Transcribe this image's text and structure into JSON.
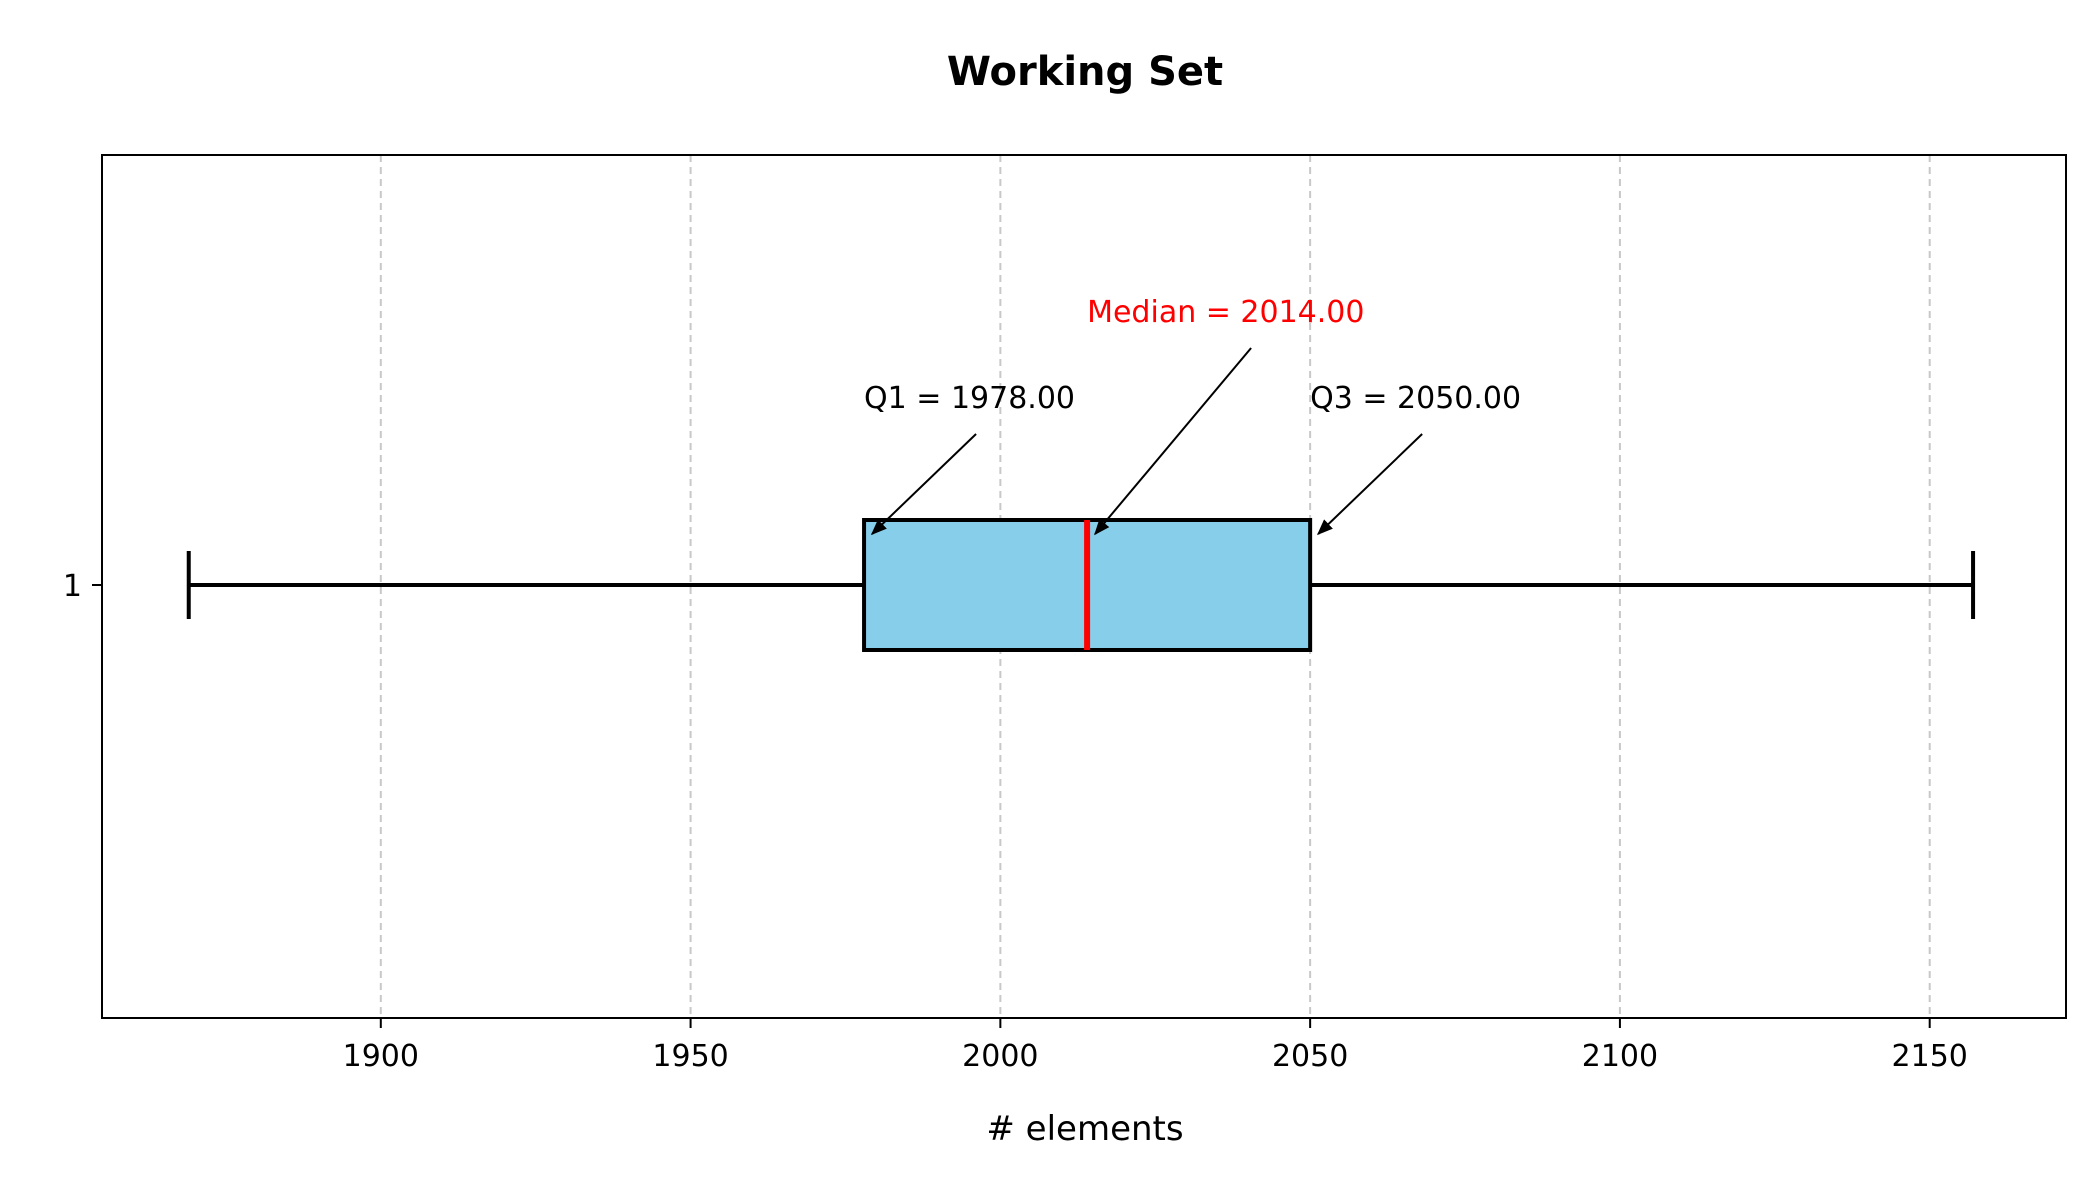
{
  "chart_data": {
    "type": "box",
    "title": "Working Set",
    "xlabel": "# elements",
    "ylabel": "",
    "orientation": "horizontal",
    "xlim": [
      1855,
      2172
    ],
    "xticks": [
      1900,
      1950,
      2000,
      2050,
      2100,
      2150
    ],
    "ytick_labels": [
      "1"
    ],
    "grid": "x dashed",
    "box": {
      "label": "1",
      "whisker_low": 1869,
      "q1": 1978,
      "median": 2014,
      "q3": 2050,
      "whisker_high": 2157
    },
    "annotations": {
      "q1": "Q1 = 1978.00",
      "median": "Median = 2014.00",
      "q3": "Q3 = 2050.00"
    },
    "colors": {
      "box_fill": "#87ceeb",
      "median_line": "#ff0000",
      "median_text": "#ff0000",
      "grid": "#c8c8c8",
      "axis": "#000000"
    }
  }
}
